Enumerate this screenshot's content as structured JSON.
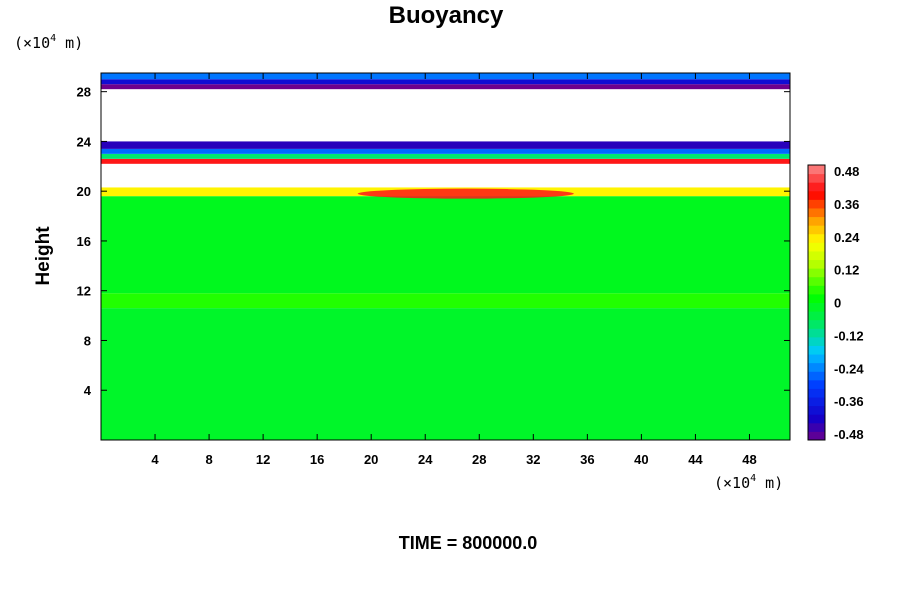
{
  "chart_data": {
    "type": "heatmap",
    "title": "Buoyancy",
    "xlabel": "",
    "ylabel": "Height",
    "x_unit": {
      "prefix": "(×10",
      "exp": "4",
      "suffix": " m)"
    },
    "y_unit": {
      "prefix": "(×10",
      "exp": "4",
      "suffix": " m)"
    },
    "xlim": [
      0,
      51
    ],
    "ylim": [
      0,
      29.5
    ],
    "x_ticks": [
      "4",
      "8",
      "12",
      "16",
      "20",
      "24",
      "28",
      "32",
      "36",
      "40",
      "44",
      "48"
    ],
    "y_ticks": [
      "4",
      "8",
      "12",
      "16",
      "20",
      "24",
      "28"
    ],
    "colorbar": {
      "min": -0.48,
      "max": 0.48,
      "levels": 32,
      "tick_labels": [
        "0.48",
        "0.36",
        "0.24",
        "0.12",
        "0",
        "-0.12",
        "-0.24",
        "-0.36",
        "-0.48"
      ]
    },
    "field": {
      "background_value": -0.02,
      "bands": [
        {
          "y_from": 0,
          "y_to": 10.6,
          "value": -0.02
        },
        {
          "y_from": 10.6,
          "y_to": 11.8,
          "value": 0.04
        },
        {
          "y_from": 11.8,
          "y_to": 19.6,
          "value": -0.01
        },
        {
          "y_from": 19.6,
          "y_to": 20.3,
          "value": 0.22
        },
        {
          "y_from": 20.3,
          "y_to": 22.2,
          "value": null
        },
        {
          "y_from": 22.2,
          "y_to": 22.6,
          "value": 0.4
        },
        {
          "y_from": 22.6,
          "y_to": 23.0,
          "value": -0.08
        },
        {
          "y_from": 23.0,
          "y_to": 23.4,
          "value": -0.25
        },
        {
          "y_from": 23.4,
          "y_to": 24.0,
          "value": -0.42
        },
        {
          "y_from": 24.0,
          "y_to": 28.2,
          "value": null
        },
        {
          "y_from": 28.2,
          "y_to": 28.6,
          "value": -0.48
        },
        {
          "y_from": 28.6,
          "y_to": 29.0,
          "value": -0.38
        },
        {
          "y_from": 29.0,
          "y_to": 29.5,
          "value": -0.24
        }
      ],
      "features": [
        {
          "name": "warm-anomaly",
          "x_from": 19,
          "x_to": 35,
          "y_center": 19.8,
          "value": 0.4
        }
      ]
    },
    "grid": false,
    "legend": "colorbar-right"
  },
  "footer": {
    "label": "TIME = 800000.0"
  }
}
